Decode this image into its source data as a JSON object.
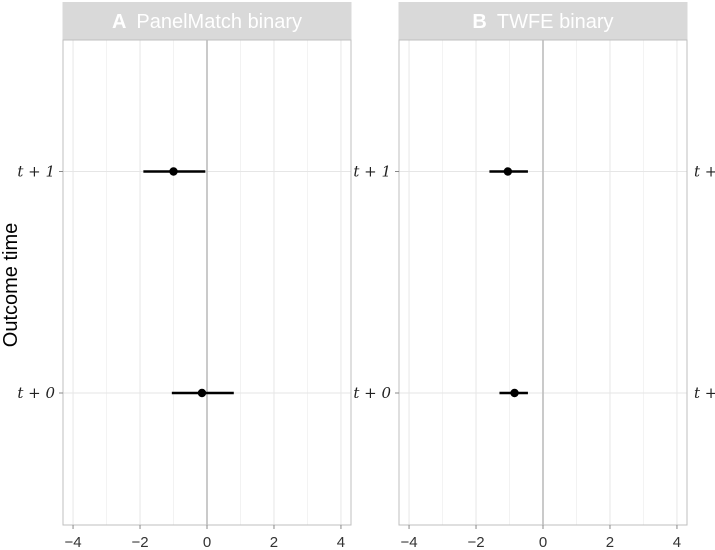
{
  "chart_data": [
    {
      "type": "scatter",
      "panel_letter": "A",
      "title": "PanelMatch binary",
      "ylabel": "Outcome time",
      "categories": [
        "t + 0",
        "t + 1"
      ],
      "points": [
        {
          "category": "t + 1",
          "estimate": -1.0,
          "ci": [
            -1.9,
            -0.05
          ]
        },
        {
          "category": "t + 0",
          "estimate": -0.15,
          "ci": [
            -1.05,
            0.8
          ]
        }
      ],
      "xlim": [
        -4.3,
        4.3
      ],
      "xticks": [
        -4,
        -2,
        0,
        2,
        4
      ],
      "reference_line": 0,
      "grid": true
    },
    {
      "type": "scatter",
      "panel_letter": "B",
      "title": "TWFE binary",
      "ylabel": "",
      "categories": [
        "t + 0",
        "t + 1"
      ],
      "points": [
        {
          "category": "t + 1",
          "estimate": -1.05,
          "ci": [
            -1.6,
            -0.45
          ]
        },
        {
          "category": "t + 0",
          "estimate": -0.85,
          "ci": [
            -1.3,
            -0.45
          ]
        }
      ],
      "xlim": [
        -4.3,
        4.3
      ],
      "xticks": [
        -4,
        -2,
        0,
        2,
        4
      ],
      "reference_line": 0,
      "grid": true
    }
  ],
  "clipped_right_labels": [
    "t +",
    "t +"
  ]
}
